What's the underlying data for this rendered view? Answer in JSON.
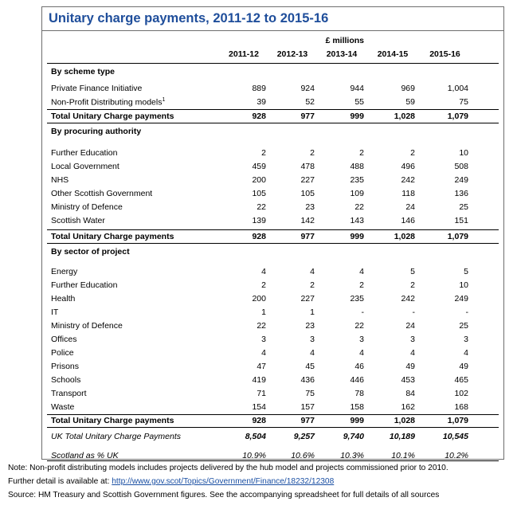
{
  "title": "Unitary charge payments, 2011-12 to 2015-16",
  "unit_label": "£ millions",
  "years": [
    "2011-12",
    "2012-13",
    "2013-14",
    "2014-15",
    "2015-16"
  ],
  "sections": [
    {
      "heading": "By scheme type",
      "rows": [
        {
          "label": "Private Finance Initiative",
          "values": [
            "889",
            "924",
            "944",
            "969",
            "1,004"
          ]
        },
        {
          "label": "Non-Profit Distributing models",
          "sup": "1",
          "values": [
            "39",
            "52",
            "55",
            "59",
            "75"
          ]
        }
      ],
      "total": {
        "label": "Total Unitary Charge payments",
        "values": [
          "928",
          "977",
          "999",
          "1,028",
          "1,079"
        ]
      }
    },
    {
      "heading": "By procuring authority",
      "rows": [
        {
          "label": "Further Education",
          "values": [
            "2",
            "2",
            "2",
            "2",
            "10"
          ]
        },
        {
          "label": "Local Government",
          "values": [
            "459",
            "478",
            "488",
            "496",
            "508"
          ]
        },
        {
          "label": "NHS",
          "values": [
            "200",
            "227",
            "235",
            "242",
            "249"
          ]
        },
        {
          "label": "Other Scottish Government",
          "values": [
            "105",
            "105",
            "109",
            "118",
            "136"
          ]
        },
        {
          "label": "Ministry of Defence",
          "values": [
            "22",
            "23",
            "22",
            "24",
            "25"
          ]
        },
        {
          "label": "Scottish Water",
          "values": [
            "139",
            "142",
            "143",
            "146",
            "151"
          ]
        }
      ],
      "total": {
        "label": "Total Unitary Charge payments",
        "values": [
          "928",
          "977",
          "999",
          "1,028",
          "1,079"
        ]
      }
    },
    {
      "heading": "By sector of project",
      "rows": [
        {
          "label": "Energy",
          "values": [
            "4",
            "4",
            "4",
            "5",
            "5"
          ]
        },
        {
          "label": "Further Education",
          "values": [
            "2",
            "2",
            "2",
            "2",
            "10"
          ]
        },
        {
          "label": "Health",
          "values": [
            "200",
            "227",
            "235",
            "242",
            "249"
          ]
        },
        {
          "label": "IT",
          "values": [
            "1",
            "1",
            "-",
            "-",
            "-"
          ]
        },
        {
          "label": "Ministry of Defence",
          "values": [
            "22",
            "23",
            "22",
            "24",
            "25"
          ]
        },
        {
          "label": "Offices",
          "values": [
            "3",
            "3",
            "3",
            "3",
            "3"
          ]
        },
        {
          "label": "Police",
          "values": [
            "4",
            "4",
            "4",
            "4",
            "4"
          ]
        },
        {
          "label": "Prisons",
          "values": [
            "47",
            "45",
            "46",
            "49",
            "49"
          ]
        },
        {
          "label": "Schools",
          "values": [
            "419",
            "436",
            "446",
            "453",
            "465"
          ]
        },
        {
          "label": "Transport",
          "values": [
            "71",
            "75",
            "78",
            "84",
            "102"
          ]
        },
        {
          "label": "Waste",
          "values": [
            "154",
            "157",
            "158",
            "162",
            "168"
          ]
        }
      ],
      "total": {
        "label": "Total Unitary Charge payments",
        "values": [
          "928",
          "977",
          "999",
          "1,028",
          "1,079"
        ]
      }
    }
  ],
  "uk_total": {
    "label": "UK Total Unitary Charge Payments",
    "values": [
      "8,504",
      "9,257",
      "9,740",
      "10,189",
      "10,545"
    ]
  },
  "scotland_pct": {
    "label": "Scotland as % UK",
    "values": [
      "10.9%",
      "10.6%",
      "10.3%",
      "10.1%",
      "10.2%"
    ]
  },
  "notes": {
    "note_line": "Note:  Non-profit distributing models includes projects delivered by the hub model and projects commissioned prior to 2010.",
    "detail_prefix": "Further detail is available at:  ",
    "detail_link": "http://www.gov.scot/Topics/Government/Finance/18232/12308",
    "source_line": "Source: HM Treasury and Scottish Government figures. See the accompanying spreadsheet for full details of all sources"
  },
  "colors": {
    "title": "#1f4e9b",
    "link": "#1a4fa3",
    "border": "#6e6e6e"
  }
}
